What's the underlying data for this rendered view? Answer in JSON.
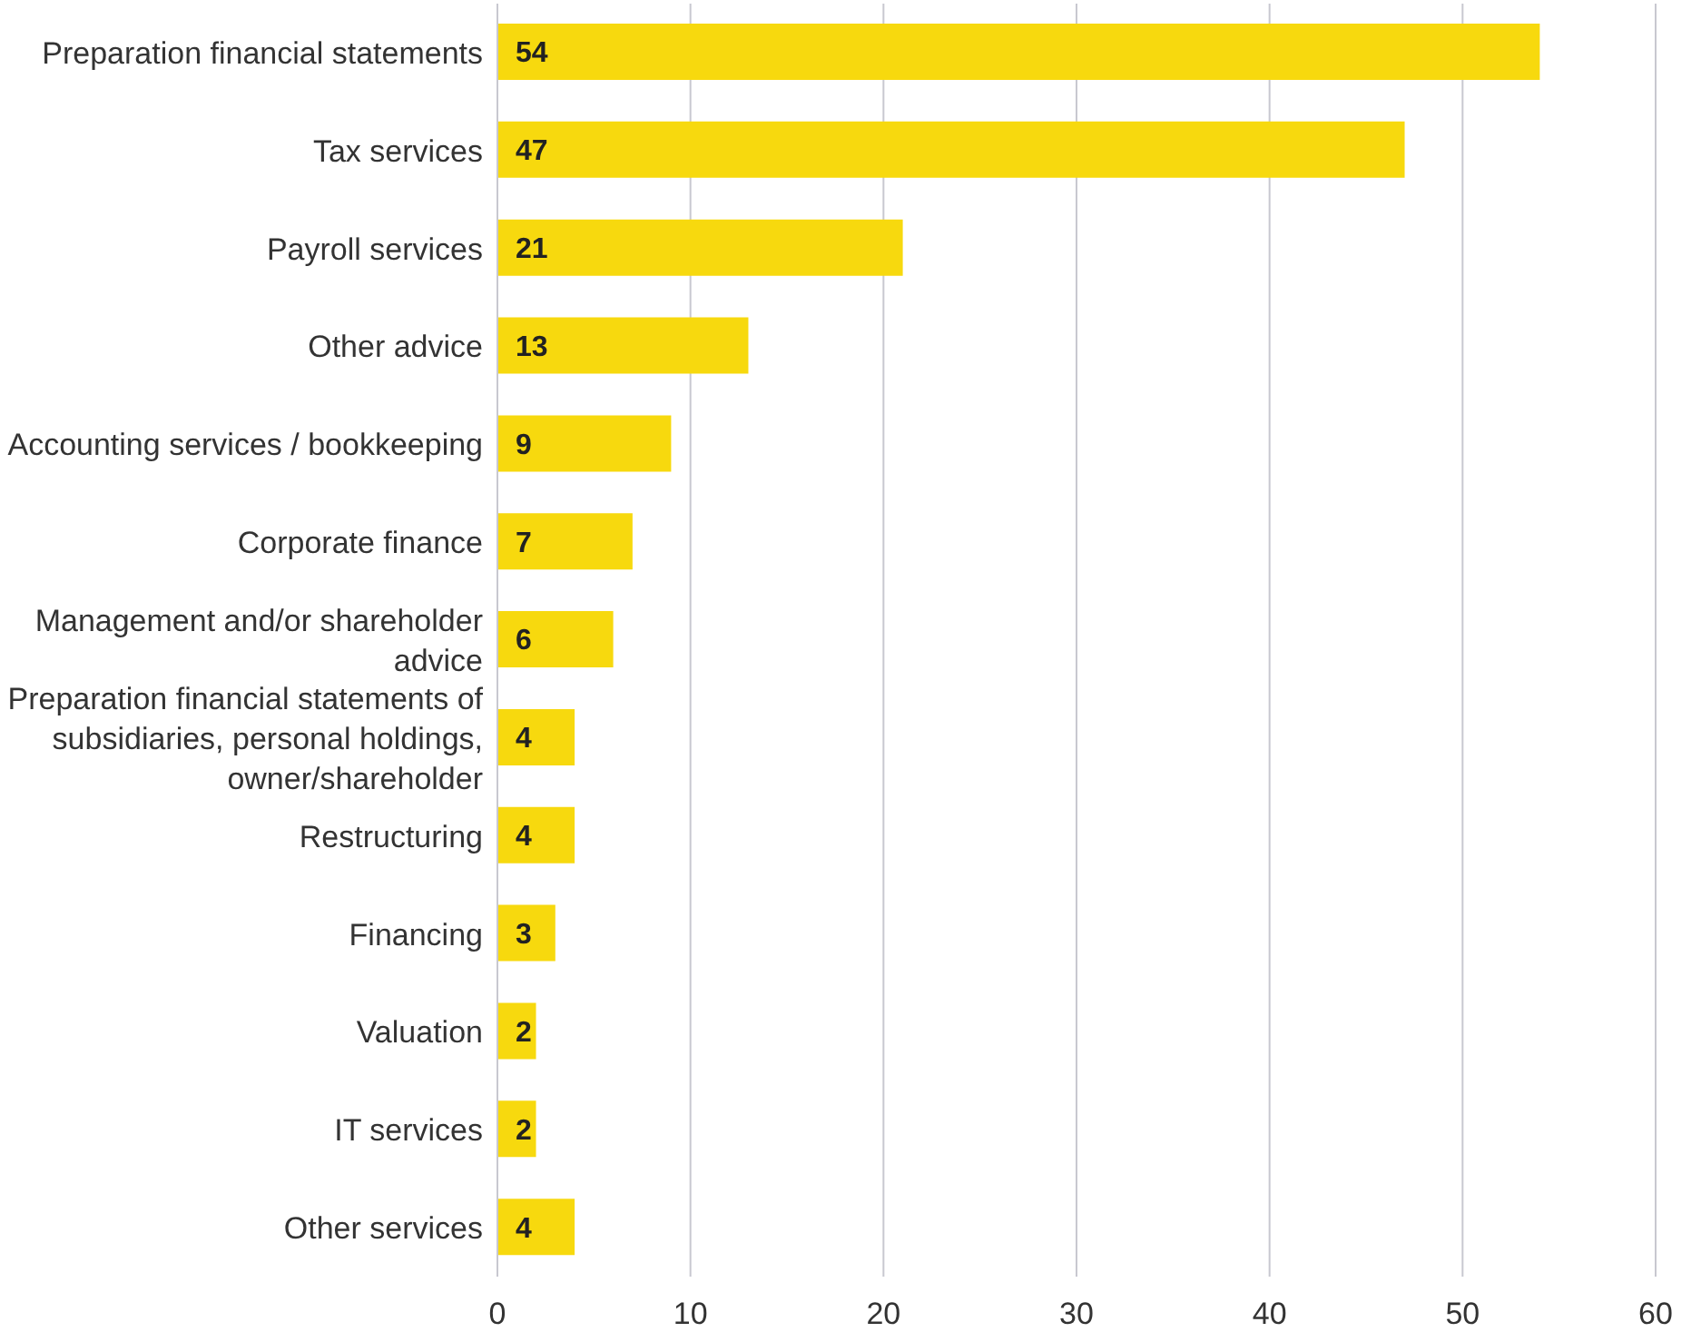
{
  "chart_data": {
    "type": "bar",
    "orientation": "horizontal",
    "categories": [
      "Preparation financial statements",
      "Tax services",
      "Payroll services",
      "Other advice",
      "Accounting services / bookkeeping",
      "Corporate finance",
      "Management and/or shareholder advice",
      "Preparation financial statements of subsidiaries, personal holdings, owner/shareholder",
      "Restructuring",
      "Financing",
      "Valuation",
      "IT services",
      "Other services"
    ],
    "values": [
      54,
      47,
      21,
      13,
      9,
      7,
      6,
      4,
      4,
      3,
      2,
      2,
      4
    ],
    "color": "#f7d90e",
    "xlim": [
      0,
      60
    ],
    "xticks": [
      0,
      10,
      20,
      30,
      40,
      50,
      60
    ],
    "grid": "x",
    "data_labels": true
  }
}
